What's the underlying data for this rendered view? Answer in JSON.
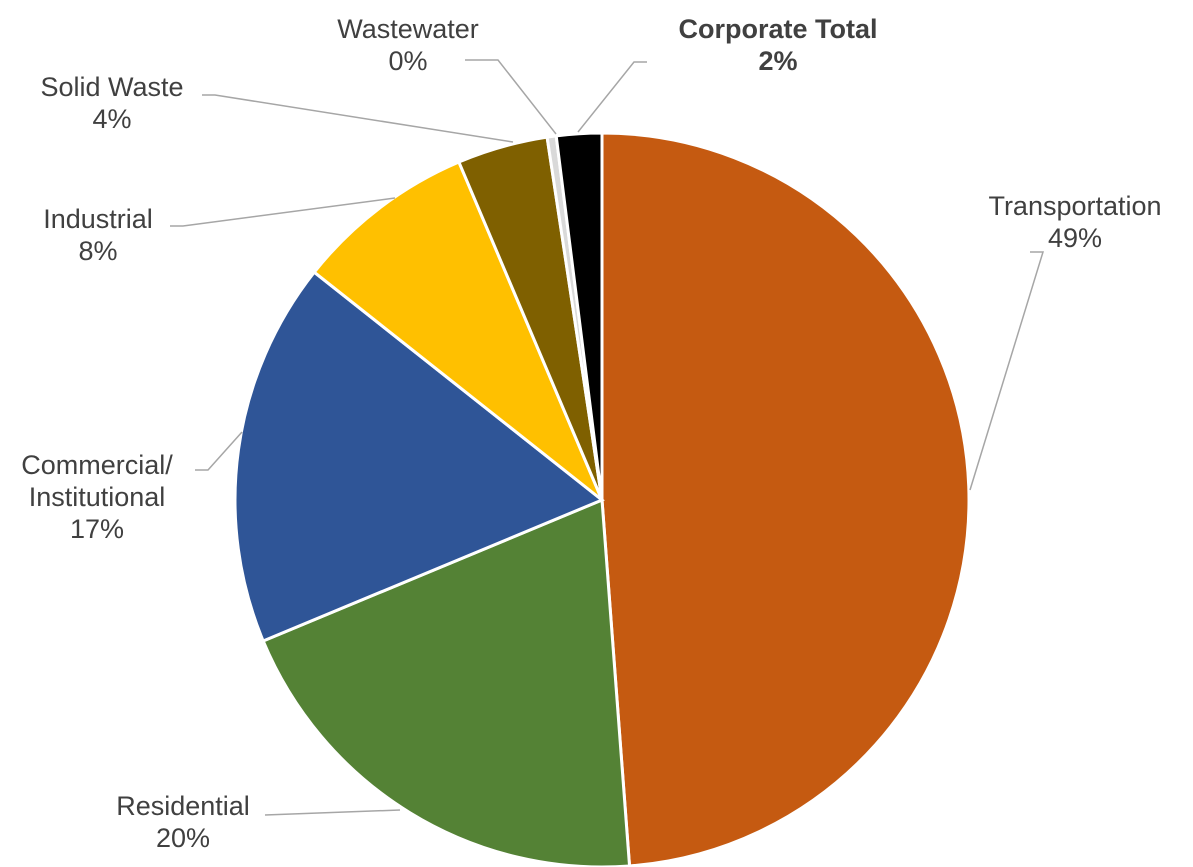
{
  "chart_data": {
    "type": "pie",
    "categories": [
      "Transportation",
      "Residential",
      "Commercial/\nInstitutional",
      "Industrial",
      "Solid Waste",
      "Wastewater",
      "Corporate Total"
    ],
    "values": [
      49,
      20,
      17,
      8,
      4,
      0.4,
      2
    ],
    "value_labels": [
      "49%",
      "20%",
      "17%",
      "8%",
      "4%",
      "0%",
      "2%"
    ],
    "colors": [
      "#c55a11",
      "#548235",
      "#2f5597",
      "#ffc000",
      "#7f6000",
      "#d9d9d9",
      "#000000"
    ],
    "highlight": "Corporate Total"
  }
}
